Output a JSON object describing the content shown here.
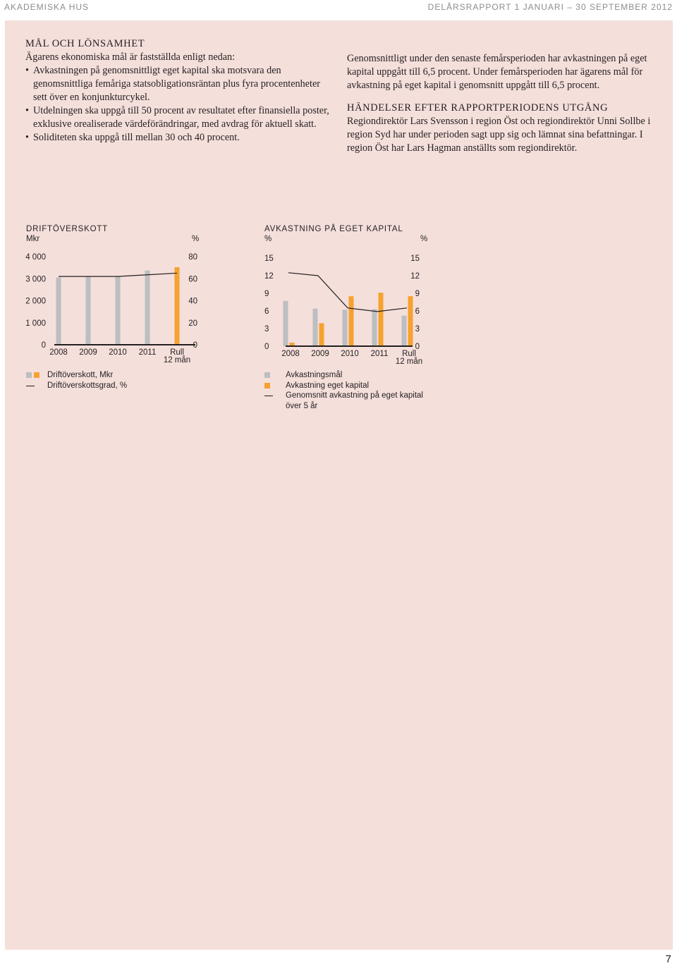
{
  "header": {
    "left": "AKADEMISKA HUS",
    "right": "DELÅRSRAPPORT 1 JANUARI – 30 SEPTEMBER 2012"
  },
  "page_number": "7",
  "left_column": {
    "heading": "MÅL OCH LÖNSAMHET",
    "intro": "Ägarens ekonomiska mål är fastställda enligt nedan:",
    "bullets": [
      "Avkastningen på genomsnittligt eget kapital ska motsvara den genomsnittliga femåriga statsobligationsräntan plus fyra procentenheter sett över en konjunkturcykel.",
      "Utdelningen ska uppgå till 50 procent av resultatet efter finansiella poster, exklusive orealiserade värdeförändringar, med avdrag för aktuell skatt.",
      "Soliditeten ska uppgå till mellan 30 och 40 procent."
    ]
  },
  "right_column": {
    "paragraph1": "Genomsnittligt under den senaste femårsperioden har avkastningen på eget kapital uppgått till 6,5 procent. Under femårsperioden har ägarens mål för avkastning på eget kapital i genomsnitt uppgått till 6,5 procent.",
    "heading2": "HÄNDELSER EFTER RAPPORTPERIODENS UTGÅNG",
    "paragraph2": "Regiondirektör Lars Svensson i region Öst och regiondirektör Unni Sollbe i region Syd har under perioden sagt upp sig och lämnat sina befattningar. I region Öst har Lars Hagman anställts som regiondirektör."
  },
  "colors": {
    "gray": "#bcbec0",
    "orange": "#f6a230",
    "line": "#231f20",
    "panel": "#f4dfdb"
  },
  "chart_data": [
    {
      "type": "bar",
      "title": "DRIFTÖVERSKOTT",
      "left_unit": "Mkr",
      "right_unit": "%",
      "categories": [
        "2008",
        "2009",
        "2010",
        "2011",
        "Rull 12 mån"
      ],
      "category_lines": [
        [
          "2008"
        ],
        [
          "2009"
        ],
        [
          "2010"
        ],
        [
          "2011"
        ],
        [
          "Rull",
          "12 mån"
        ]
      ],
      "left_axis": {
        "ylim": [
          0,
          4000
        ],
        "ticks": [
          "0",
          "1 000",
          "2 000",
          "3 000",
          "4 000"
        ]
      },
      "right_axis": {
        "ylim": [
          0,
          80
        ],
        "ticks": [
          "0",
          "20",
          "40",
          "60",
          "80"
        ]
      },
      "series": [
        {
          "name": "Driftöverskott, Mkr",
          "type": "bar",
          "axis": "left",
          "values": [
            3050,
            3100,
            3100,
            3370,
            3520
          ],
          "colors": [
            "#bcbec0",
            "#bcbec0",
            "#bcbec0",
            "#bcbec0",
            "#f6a230"
          ]
        },
        {
          "name": "Driftöverskottsgrad, %",
          "type": "line",
          "axis": "right",
          "values": [
            62,
            62,
            62,
            63.5,
            65
          ]
        }
      ],
      "legend": [
        "Driftöverskott, Mkr",
        "Driftöverskottsgrad, %"
      ]
    },
    {
      "type": "bar",
      "title": "AVKASTNING PÅ EGET KAPITAL",
      "left_unit": "%",
      "right_unit": "%",
      "categories": [
        "2008",
        "2009",
        "2010",
        "2011",
        "Rull 12 mån"
      ],
      "category_lines": [
        [
          "2008"
        ],
        [
          "2009"
        ],
        [
          "2010"
        ],
        [
          "2011"
        ],
        [
          "Rull",
          "12 mån"
        ]
      ],
      "left_axis": {
        "ylim": [
          0,
          15
        ],
        "ticks": [
          "0",
          "3",
          "6",
          "9",
          "12",
          "15"
        ]
      },
      "right_axis": {
        "ylim": [
          0,
          15
        ],
        "ticks": [
          "0",
          "3",
          "6",
          "9",
          "12",
          "15"
        ]
      },
      "series": [
        {
          "name": "Avkastningsmål",
          "type": "bar",
          "values": [
            7.7,
            6.4,
            6.2,
            6.3,
            5.2
          ]
        },
        {
          "name": "Avkastning eget kapital",
          "type": "bar",
          "values": [
            0.6,
            3.9,
            8.5,
            9.1,
            8.5
          ]
        },
        {
          "name": "Genomsnitt avkastning på eget kapital över 5 år",
          "type": "line",
          "values": [
            12.5,
            12.0,
            6.5,
            5.9,
            6.5
          ]
        }
      ],
      "legend": [
        "Avkastningsmål",
        "Avkastning eget kapital",
        "Genomsnitt avkastning på eget kapital",
        "över 5 år"
      ]
    }
  ]
}
